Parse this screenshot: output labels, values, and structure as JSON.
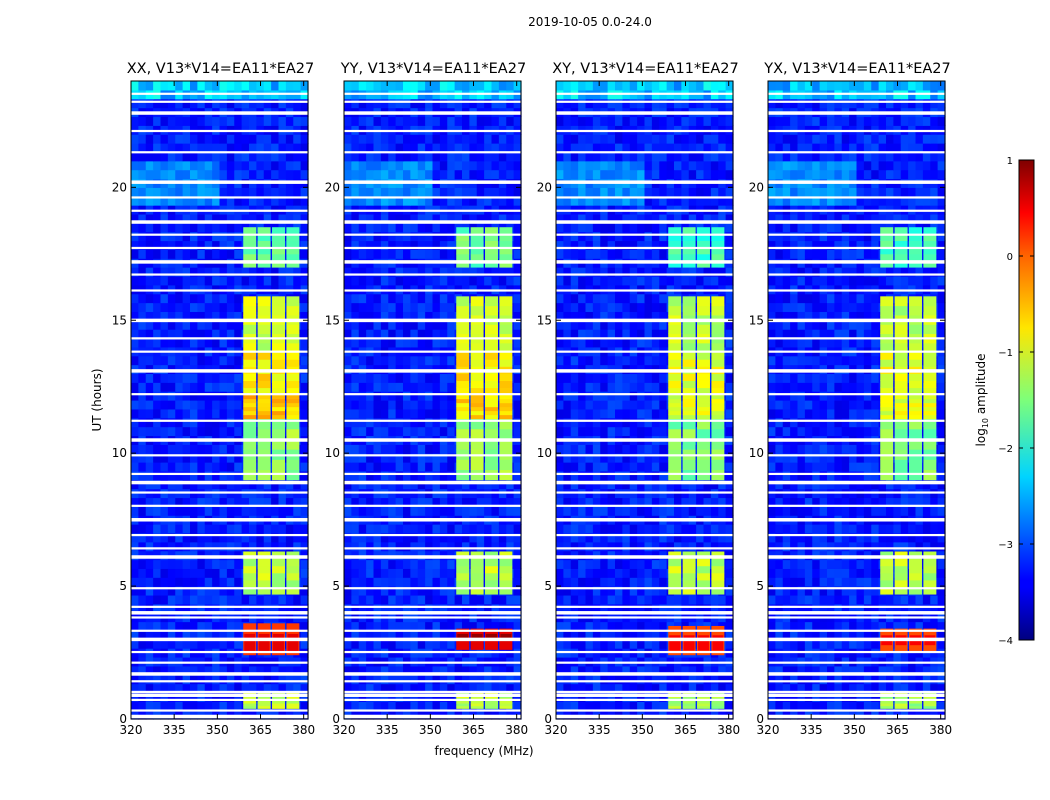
{
  "suptitle": "2019-10-05 0.0-24.0",
  "colors": {
    "axis": "#000000",
    "gap": "#ffffff"
  },
  "chart_data": {
    "type": "heatmap",
    "title": "2019-10-05 0.0-24.0",
    "xlabel": "frequency (MHz)",
    "ylabel": "UT (hours)",
    "xlim": [
      320,
      381.5
    ],
    "ylim": [
      0,
      24
    ],
    "xticks": [
      320,
      335,
      350,
      365,
      380
    ],
    "xtick_labels": [
      "320",
      "335",
      "350",
      "365",
      "380"
    ],
    "yticks": [
      0,
      5,
      10,
      15,
      20
    ],
    "ytick_labels": [
      "0",
      "5",
      "10",
      "15",
      "20"
    ],
    "colorbar": {
      "label": "log10 amplitude",
      "label_main": "log",
      "label_sub": "10",
      "label_rest": " amplitude",
      "range": [
        -4,
        1
      ],
      "ticks": [
        1,
        0,
        -1,
        -2,
        -3,
        -4
      ],
      "tick_labels": [
        "1",
        "0",
        "−1",
        "−2",
        "−3",
        "−4"
      ],
      "colormap": "jet"
    },
    "band": {
      "freq_start": 359,
      "freq_end": 379.5,
      "sub_bands": [
        [
          359,
          363.5
        ],
        [
          364,
          368.5
        ],
        [
          369,
          373.5
        ],
        [
          374,
          378.5
        ]
      ],
      "notes": "RFI band: bright column blocks near 359-379 MHz"
    },
    "flagged_hours": [
      0.1,
      0.3,
      0.7,
      0.9,
      1.0,
      1.4,
      1.7,
      2.1,
      2.5,
      3.0,
      3.3,
      3.8,
      4.0,
      4.2,
      4.9,
      6.1,
      6.4,
      6.9,
      7.5,
      8.0,
      8.5,
      8.9,
      9.2,
      9.9,
      10.5,
      11.2,
      12.2,
      13.1,
      13.8,
      14.3,
      15.0,
      16.1,
      16.7,
      17.2,
      17.7,
      18.2,
      18.7,
      19.1,
      19.6,
      20.2,
      21.3,
      22.1,
      22.8,
      23.2,
      23.5
    ],
    "panels": [
      {
        "title": "XX, V13*V14=EA11*EA27",
        "burst": {
          "hours": [
            2.4,
            3.6
          ],
          "level": 0.5
        },
        "active": [
          [
            0.4,
            1.0,
            -1.2
          ],
          [
            4.7,
            6.3,
            -1.2
          ],
          [
            9.0,
            11.3,
            -1.4
          ],
          [
            11.3,
            12.2,
            -0.6
          ],
          [
            12.2,
            13.8,
            -0.8
          ],
          [
            13.8,
            15.9,
            -1.1
          ],
          [
            17.0,
            18.5,
            -1.6
          ]
        ]
      },
      {
        "title": "YY, V13*V14=EA11*EA27",
        "burst": {
          "hours": [
            2.6,
            3.4
          ],
          "level": 0.9
        },
        "active": [
          [
            0.4,
            1.0,
            -1.2
          ],
          [
            4.7,
            6.3,
            -1.2
          ],
          [
            9.0,
            11.3,
            -1.4
          ],
          [
            11.3,
            12.2,
            -0.7
          ],
          [
            12.2,
            13.8,
            -0.8
          ],
          [
            13.8,
            15.9,
            -1.1
          ],
          [
            17.0,
            18.5,
            -1.6
          ]
        ]
      },
      {
        "title": "XY, V13*V14=EA11*EA27",
        "burst": {
          "hours": [
            2.4,
            3.5
          ],
          "level": 0.4
        },
        "active": [
          [
            0.4,
            1.0,
            -1.3
          ],
          [
            4.7,
            6.3,
            -1.2
          ],
          [
            9.0,
            11.3,
            -1.5
          ],
          [
            11.3,
            12.2,
            -1.0
          ],
          [
            12.2,
            13.8,
            -1.0
          ],
          [
            13.8,
            15.9,
            -1.2
          ],
          [
            17.0,
            18.5,
            -1.8
          ]
        ]
      },
      {
        "title": "YX, V13*V14=EA11*EA27",
        "burst": {
          "hours": [
            2.5,
            3.4
          ],
          "level": 0.4
        },
        "active": [
          [
            0.4,
            1.0,
            -1.3
          ],
          [
            4.7,
            6.3,
            -1.2
          ],
          [
            9.0,
            11.3,
            -1.5
          ],
          [
            11.3,
            12.2,
            -1.0
          ],
          [
            12.2,
            13.8,
            -1.0
          ],
          [
            13.8,
            15.9,
            -1.2
          ],
          [
            17.0,
            18.5,
            -1.8
          ]
        ]
      }
    ]
  }
}
